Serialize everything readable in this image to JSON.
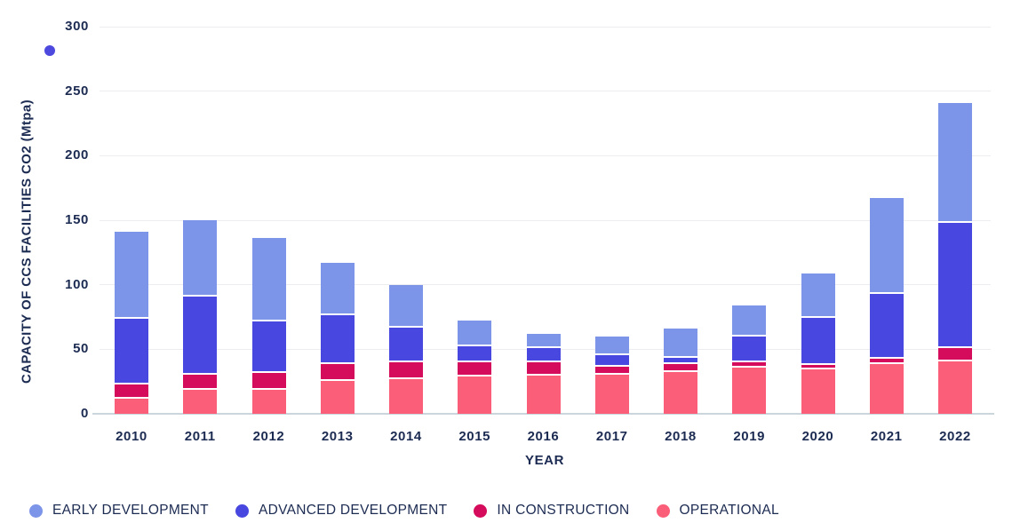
{
  "chart_data": {
    "type": "bar",
    "stacked": true,
    "xlabel": "YEAR",
    "ylabel": "CAPACITY OF CCS FACILITIES CO2 (Mtpa)",
    "ylim": [
      0,
      300
    ],
    "yticks": [
      0,
      50,
      100,
      150,
      200,
      250,
      300
    ],
    "grid": true,
    "legend_position": "bottom",
    "categories": [
      "2010",
      "2011",
      "2012",
      "2013",
      "2014",
      "2015",
      "2016",
      "2017",
      "2018",
      "2019",
      "2020",
      "2021",
      "2022"
    ],
    "series": [
      {
        "name": "EARLY DEVELOPMENT",
        "color": "#7D95E8",
        "values": [
          66,
          58,
          63,
          39,
          32,
          18,
          10,
          13,
          21,
          23,
          33,
          73,
          92
        ]
      },
      {
        "name": "ADVANCED DEVELOPMENT",
        "color": "#4847E0",
        "values": [
          51,
          60,
          40,
          38,
          27,
          13,
          11,
          9,
          5,
          20,
          37,
          50,
          97
        ]
      },
      {
        "name": "IN CONSTRUCTION",
        "color": "#D50C5C",
        "values": [
          11,
          12,
          13,
          13,
          13,
          11,
          10,
          6,
          6,
          4,
          3,
          4,
          10
        ]
      },
      {
        "name": "OPERATIONAL",
        "color": "#FA5E78",
        "values": [
          13,
          20,
          20,
          27,
          28,
          30,
          31,
          32,
          34,
          37,
          36,
          40,
          42
        ]
      }
    ],
    "stack_order_bottom_to_top": [
      "OPERATIONAL",
      "IN CONSTRUCTION",
      "ADVANCED DEVELOPMENT",
      "EARLY DEVELOPMENT"
    ]
  },
  "colors": {
    "text_navy": "#1C2B52",
    "gridline": "#ECECF1",
    "axis_line": "#CBD6DC",
    "background": "#FFFFFF",
    "artifact_dot": "#4D49DE"
  }
}
